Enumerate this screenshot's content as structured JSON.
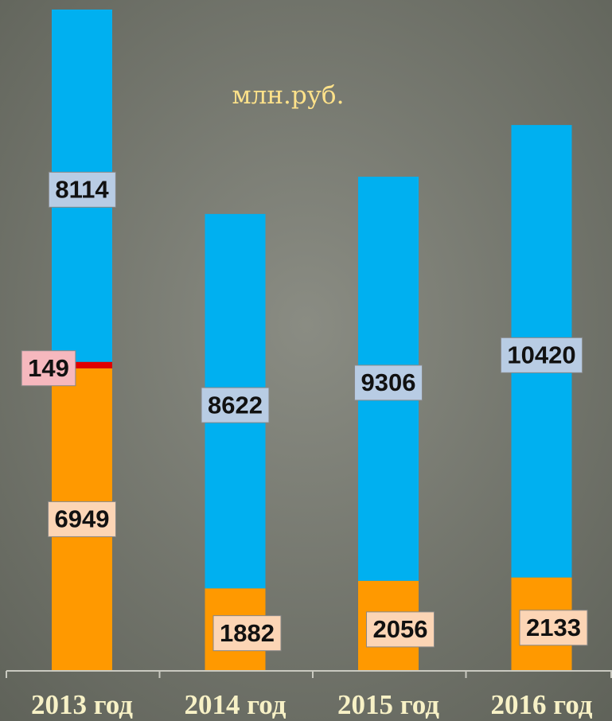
{
  "chart_data": {
    "type": "stacked_bar",
    "subtitle": "млн.руб.",
    "categories": [
      "2013 год",
      "2014 год",
      "2015 год",
      "2016 год"
    ],
    "series": [
      {
        "color": "#ff9900",
        "label_color": "#fcd5b5",
        "values": [
          6949,
          1882,
          2056,
          2133
        ]
      },
      {
        "color": "#e00000",
        "label_color": "#f6b8be",
        "values": [
          149,
          null,
          null,
          null
        ]
      },
      {
        "color": "#00b0f0",
        "label_color": "#b8cce4",
        "values": [
          8114,
          8622,
          9306,
          10420
        ]
      }
    ]
  }
}
